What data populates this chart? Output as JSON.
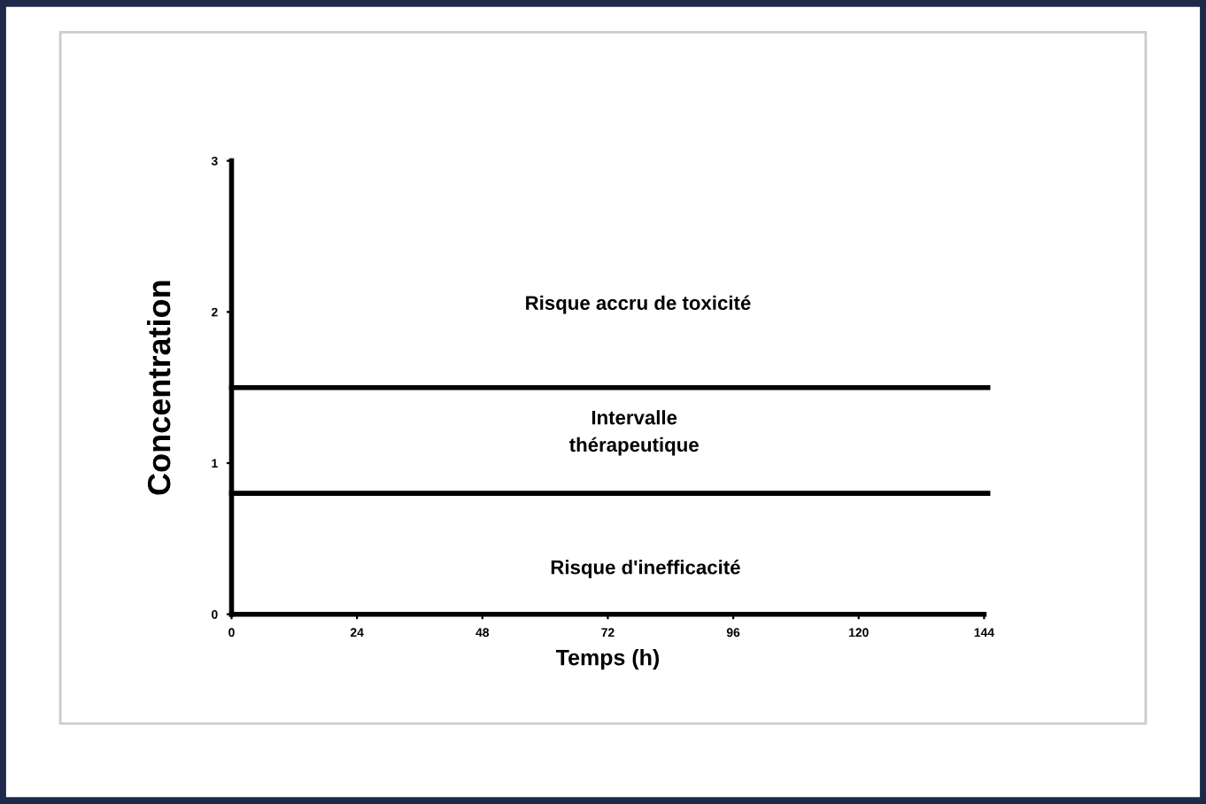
{
  "chart_data": {
    "type": "line",
    "ylabel": "Concentration",
    "xlabel": "Temps (h)",
    "xlim": [
      0,
      144
    ],
    "xticks": [
      0,
      24,
      48,
      72,
      96,
      120,
      144
    ],
    "ylim": [
      0,
      3
    ],
    "yticks": [
      0,
      1,
      2,
      3
    ],
    "ref_lines": [
      {
        "axis": "y",
        "value": 1.5,
        "color": "#000000"
      },
      {
        "axis": "y",
        "value": 0.8,
        "color": "#000000"
      }
    ],
    "annotations": [
      "Risque accru de toxicité",
      "Intervalle\nthérapeutique",
      "Risque d'inefficacité"
    ],
    "grid": false,
    "legend": false
  }
}
